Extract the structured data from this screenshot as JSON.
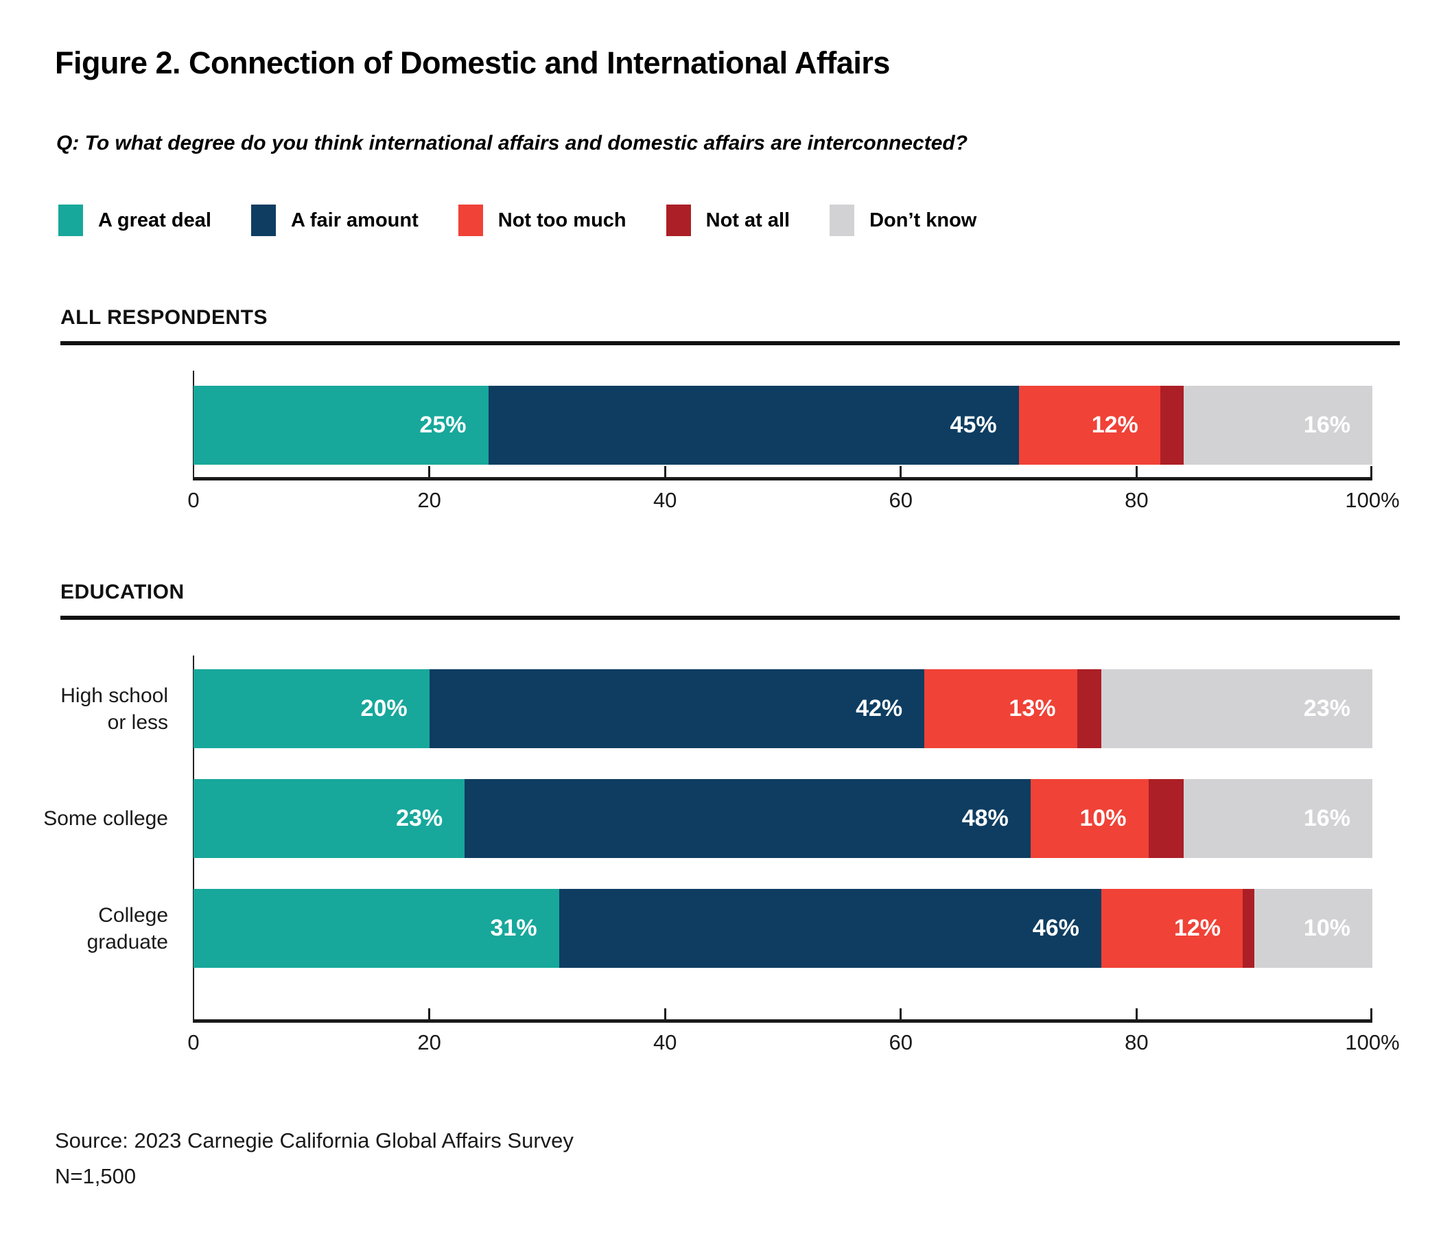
{
  "title": "Figure 2. Connection of Domestic and International Affairs",
  "question": "Q: To what degree do you think international affairs and domestic affairs are interconnected?",
  "legend": [
    {
      "label": "A great deal",
      "color": "#17A89B"
    },
    {
      "label": "A fair amount",
      "color": "#0E3D61"
    },
    {
      "label": "Not too much",
      "color": "#F04237"
    },
    {
      "label": "Not at all",
      "color": "#AC1F26"
    },
    {
      "label": "Don’t know",
      "color": "#D2D2D4"
    }
  ],
  "sections": [
    {
      "header": "ALL RESPONDENTS"
    },
    {
      "header": "EDUCATION"
    }
  ],
  "chart_data": [
    {
      "type": "bar",
      "orientation": "horizontal",
      "stacked": true,
      "section": "ALL RESPONDENTS",
      "categories": [
        "All respondents"
      ],
      "category_display": [
        ""
      ],
      "series": [
        {
          "name": "A great deal",
          "values": [
            25
          ]
        },
        {
          "name": "A fair amount",
          "values": [
            45
          ]
        },
        {
          "name": "Not too much",
          "values": [
            12
          ]
        },
        {
          "name": "Not at all",
          "values": [
            2
          ]
        },
        {
          "name": "Don’t know",
          "values": [
            16
          ]
        }
      ],
      "xlim": [
        0,
        100
      ],
      "xticks": [
        0,
        20,
        40,
        60,
        80,
        100
      ],
      "xtick_labels": [
        "0",
        "20",
        "40",
        "60",
        "80",
        "100%"
      ],
      "data_label_format": "{value}%",
      "show_labels_min": 5,
      "grid": false,
      "legend_position": "top"
    },
    {
      "type": "bar",
      "orientation": "horizontal",
      "stacked": true,
      "section": "EDUCATION",
      "categories": [
        "High school or less",
        "Some college",
        "College graduate"
      ],
      "category_display": [
        "High school\nor less",
        "Some college",
        "College\ngraduate"
      ],
      "series": [
        {
          "name": "A great deal",
          "values": [
            20,
            23,
            31
          ]
        },
        {
          "name": "A fair amount",
          "values": [
            42,
            48,
            46
          ]
        },
        {
          "name": "Not too much",
          "values": [
            13,
            10,
            12
          ]
        },
        {
          "name": "Not at all",
          "values": [
            2,
            3,
            1
          ]
        },
        {
          "name": "Don’t know",
          "values": [
            23,
            16,
            10
          ]
        }
      ],
      "xlim": [
        0,
        100
      ],
      "xticks": [
        0,
        20,
        40,
        60,
        80,
        100
      ],
      "xtick_labels": [
        "0",
        "20",
        "40",
        "60",
        "80",
        "100%"
      ],
      "data_label_format": "{value}%",
      "show_labels_min": 5,
      "grid": false,
      "legend_position": "top"
    }
  ],
  "source": {
    "line1": "Source: 2023 Carnegie California Global Affairs Survey",
    "line2": "N=1,500"
  }
}
